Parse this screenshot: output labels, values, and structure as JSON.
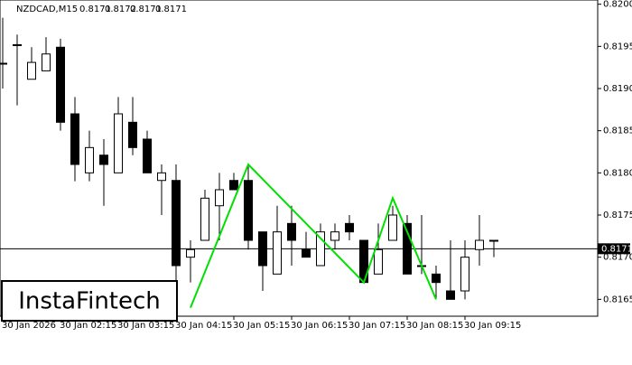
{
  "chart_data": {
    "type": "candlestick",
    "title": "NZDCAD,M15",
    "header_values": [
      0.8171,
      0.8172,
      0.8171,
      0.8171
    ],
    "logo": "InstaFintech",
    "categories": [
      "30 Jan 2026",
      null,
      null,
      null,
      "30 Jan 02:15",
      null,
      null,
      null,
      "30 Jan 03:15",
      null,
      null,
      null,
      "30 Jan 04:15",
      null,
      null,
      null,
      "30 Jan 05:15",
      null,
      null,
      null,
      "30 Jan 06:15",
      null,
      null,
      null,
      "30 Jan 07:15",
      null,
      null,
      null,
      "30 Jan 08:15",
      null,
      null,
      null,
      "30 Jan 09:15",
      null,
      null
    ],
    "open": [
      0.8193,
      0.81952,
      0.81911,
      0.81921,
      0.81949,
      0.8187,
      0.818,
      0.81821,
      0.818,
      0.8186,
      0.8184,
      0.81791,
      0.81791,
      0.817,
      0.8172,
      0.81761,
      0.81791,
      0.81791,
      0.8173,
      0.8168,
      0.8174,
      0.81709,
      0.8169,
      0.8172,
      0.8174,
      0.8172,
      0.8168,
      0.8172,
      0.8174,
      0.8169,
      0.8168,
      0.8166,
      0.8166,
      0.81709,
      0.8172
    ],
    "high": [
      0.81984,
      0.81964,
      0.81949,
      0.81961,
      0.81959,
      0.8189,
      0.8185,
      0.8184,
      0.8189,
      0.8189,
      0.8185,
      0.8181,
      0.8181,
      0.8172,
      0.8178,
      0.818,
      0.818,
      0.8181,
      0.8173,
      0.81761,
      0.81761,
      0.8173,
      0.8174,
      0.8174,
      0.8175,
      0.8172,
      0.8174,
      0.81761,
      0.8175,
      0.8175,
      0.8169,
      0.8172,
      0.8172,
      0.8175,
      0.8172
    ],
    "low": [
      0.819,
      0.8188,
      0.81911,
      0.81921,
      0.8185,
      0.8179,
      0.8179,
      0.81761,
      0.818,
      0.81821,
      0.818,
      0.8175,
      0.8165,
      0.8167,
      0.8172,
      0.8172,
      0.8178,
      0.81709,
      0.8166,
      0.8168,
      0.8169,
      0.817,
      0.8169,
      0.81709,
      0.8172,
      0.8167,
      0.8168,
      0.8172,
      0.8168,
      0.8168,
      0.8165,
      0.8165,
      0.8165,
      0.8169,
      0.817
    ],
    "close": [
      0.8193,
      0.81951,
      0.81931,
      0.81941,
      0.8186,
      0.8181,
      0.8183,
      0.8181,
      0.8187,
      0.8183,
      0.818,
      0.818,
      0.8169,
      0.81709,
      0.8177,
      0.8178,
      0.8178,
      0.8172,
      0.8169,
      0.8173,
      0.8172,
      0.817,
      0.8173,
      0.8173,
      0.8173,
      0.8167,
      0.81709,
      0.8175,
      0.8168,
      0.8169,
      0.8167,
      0.8165,
      0.817,
      0.8172,
      0.8172
    ],
    "pattern": {
      "color": "#00e000",
      "x": [
        13,
        17,
        25,
        27,
        30
      ],
      "values": [
        0.8164,
        0.8181,
        0.8167,
        0.8177,
        0.8165
      ]
    },
    "current_price": 0.8171,
    "ylim": [
      0.8163,
      0.82005
    ],
    "yticks": [
      0.8165,
      {
        "value": 0.817,
        "label": "0.8170"
      },
      0.8175,
      {
        "value": 0.818,
        "label": "0.8180"
      },
      0.8185,
      {
        "value": 0.819,
        "label": "0.8190"
      },
      0.8195,
      {
        "value": 0.82,
        "label": "0.8200"
      }
    ]
  }
}
